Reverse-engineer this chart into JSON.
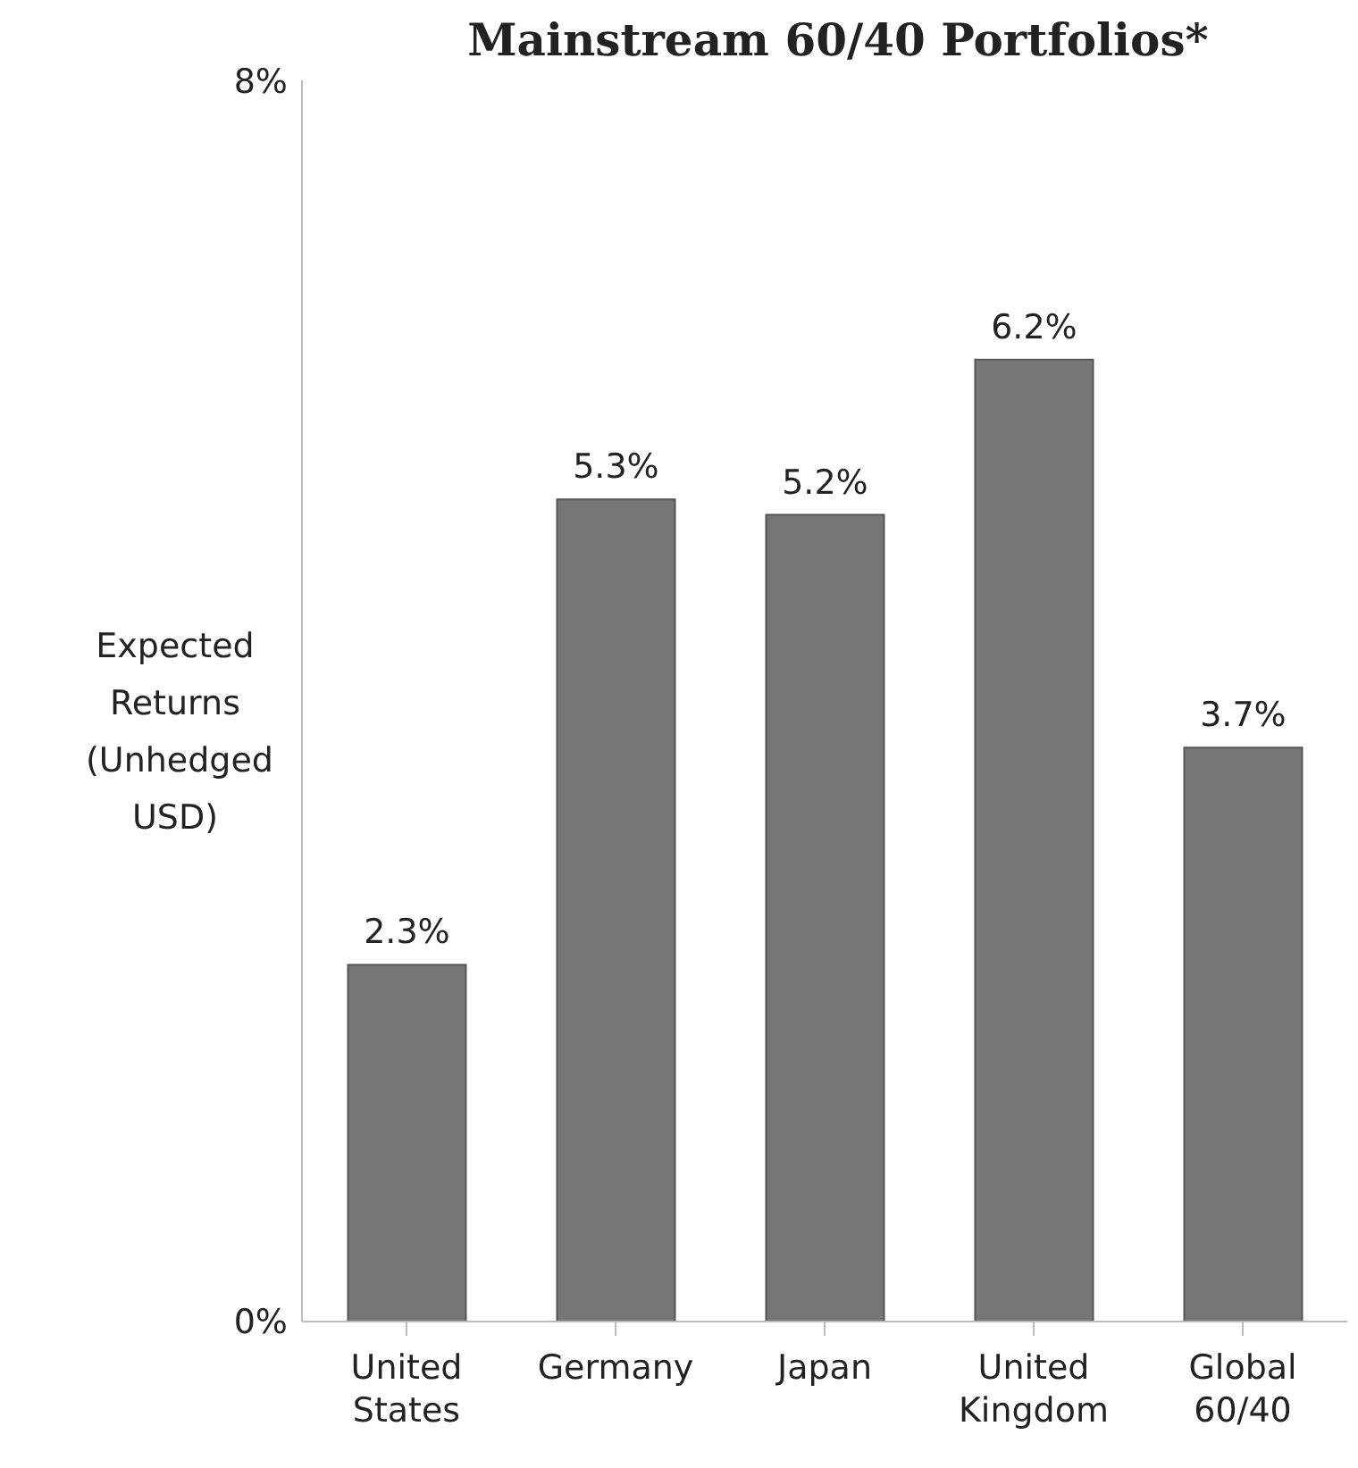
{
  "chart_data": {
    "type": "bar",
    "title": "Mainstream 60/40 Portfolios*",
    "ylabel": "Expected Returns (Unhedged USD)",
    "categories": [
      "United States",
      "Germany",
      "Japan",
      "United Kingdom",
      "Global 60/40"
    ],
    "values": [
      2.3,
      5.3,
      5.2,
      6.2,
      3.7
    ],
    "value_labels": [
      "2.3%",
      "5.3%",
      "5.2%",
      "6.2%",
      "3.7%"
    ],
    "color": "#767676",
    "ylim": [
      0,
      8
    ],
    "yticks": [
      {
        "value": 0,
        "label": "0%"
      },
      {
        "value": 8,
        "label": "8%"
      }
    ],
    "grid": false
  }
}
